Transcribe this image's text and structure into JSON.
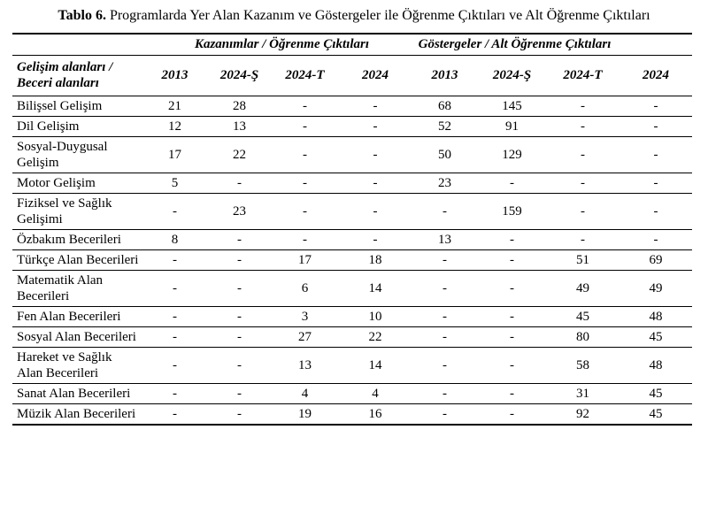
{
  "title": {
    "label": "Tablo 6.",
    "text": "Programlarda Yer Alan Kazanım ve Göstergeler ile Öğrenme Çıktıları ve Alt Öğrenme Çıktıları"
  },
  "table": {
    "corner_header": "Gelişim alanları / Beceri alanları",
    "group_headers": [
      "Kazanımlar / Öğrenme Çıktıları",
      "Göstergeler / Alt Öğrenme Çıktıları"
    ],
    "columns": [
      "2013",
      "2024-Ş",
      "2024-T",
      "2024",
      "2013",
      "2024-Ş",
      "2024-T",
      "2024"
    ],
    "rows": [
      {
        "label": "Bilişsel Gelişim",
        "values": [
          "21",
          "28",
          "-",
          "-",
          "68",
          "145",
          "-",
          "-"
        ]
      },
      {
        "label": "Dil Gelişim",
        "values": [
          "12",
          "13",
          "-",
          "-",
          "52",
          "91",
          "-",
          "-"
        ]
      },
      {
        "label": "Sosyal-Duygusal Gelişim",
        "values": [
          "17",
          "22",
          "-",
          "-",
          "50",
          "129",
          "-",
          "-"
        ]
      },
      {
        "label": "Motor Gelişim",
        "values": [
          "5",
          "-",
          "-",
          "-",
          "23",
          "-",
          "-",
          "-"
        ]
      },
      {
        "label": "Fiziksel ve Sağlık Gelişimi",
        "values": [
          "-",
          "23",
          "-",
          "-",
          "-",
          "159",
          "-",
          "-"
        ]
      },
      {
        "label": "Özbakım Becerileri",
        "values": [
          "8",
          "-",
          "-",
          "-",
          "13",
          "-",
          "-",
          "-"
        ]
      },
      {
        "label": "Türkçe Alan Becerileri",
        "values": [
          "-",
          "-",
          "17",
          "18",
          "-",
          "-",
          "51",
          "69"
        ]
      },
      {
        "label": "Matematik Alan Becerileri",
        "values": [
          "-",
          "-",
          "6",
          "14",
          "-",
          "-",
          "49",
          "49"
        ]
      },
      {
        "label": "Fen Alan Becerileri",
        "values": [
          "-",
          "-",
          "3",
          "10",
          "-",
          "-",
          "45",
          "48"
        ]
      },
      {
        "label": "Sosyal Alan Becerileri",
        "values": [
          "-",
          "-",
          "27",
          "22",
          "-",
          "-",
          "80",
          "45"
        ]
      },
      {
        "label": "Hareket ve Sağlık Alan Becerileri",
        "values": [
          "-",
          "-",
          "13",
          "14",
          "-",
          "-",
          "58",
          "48"
        ]
      },
      {
        "label": "Sanat Alan Becerileri",
        "values": [
          "-",
          "-",
          "4",
          "4",
          "-",
          "-",
          "31",
          "45"
        ]
      },
      {
        "label": "Müzik Alan Becerileri",
        "values": [
          "-",
          "-",
          "19",
          "16",
          "-",
          "-",
          "92",
          "45"
        ]
      }
    ]
  }
}
